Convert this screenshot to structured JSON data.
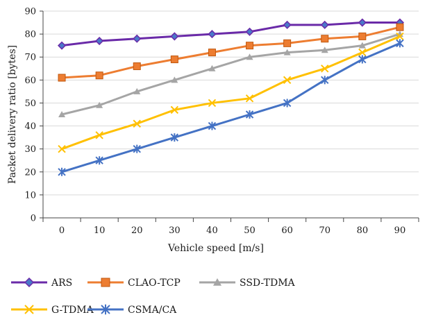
{
  "chart_data": {
    "type": "line",
    "title": "",
    "xlabel": "Vehicle speed [m/s]",
    "ylabel": "Packet delivery ratio [bytes]",
    "x": [
      0,
      10,
      20,
      30,
      40,
      50,
      60,
      70,
      80,
      90
    ],
    "x_tick_labels": [
      "0",
      "10",
      "20",
      "30",
      "40",
      "50",
      "60",
      "70",
      "80",
      "90"
    ],
    "ylim": [
      0,
      90
    ],
    "y_ticks": [
      0,
      10,
      20,
      30,
      40,
      50,
      60,
      70,
      80,
      90
    ],
    "grid": "horizontal",
    "legend_position": "bottom",
    "series": [
      {
        "name": "ARS",
        "color": "#6a2aa8",
        "marker": "diamond",
        "values": [
          75,
          77,
          78,
          79,
          80,
          81,
          84,
          84,
          85,
          85
        ]
      },
      {
        "name": "CLAO-TCP",
        "color": "#ed7d31",
        "marker": "square",
        "values": [
          61,
          62,
          66,
          69,
          72,
          75,
          76,
          78,
          79,
          83
        ]
      },
      {
        "name": "SSD-TDMA",
        "color": "#a5a5a5",
        "marker": "triangle",
        "values": [
          45,
          49,
          55,
          60,
          65,
          70,
          72,
          73,
          75,
          80
        ]
      },
      {
        "name": "G-TDMA",
        "color": "#ffc000",
        "marker": "x",
        "values": [
          30,
          36,
          41,
          47,
          50,
          52,
          60,
          65,
          72,
          79
        ]
      },
      {
        "name": "CSMA/CA",
        "color": "#4472c4",
        "marker": "asterisk",
        "values": [
          20,
          25,
          30,
          35,
          40,
          45,
          50,
          60,
          69,
          76
        ]
      }
    ]
  }
}
